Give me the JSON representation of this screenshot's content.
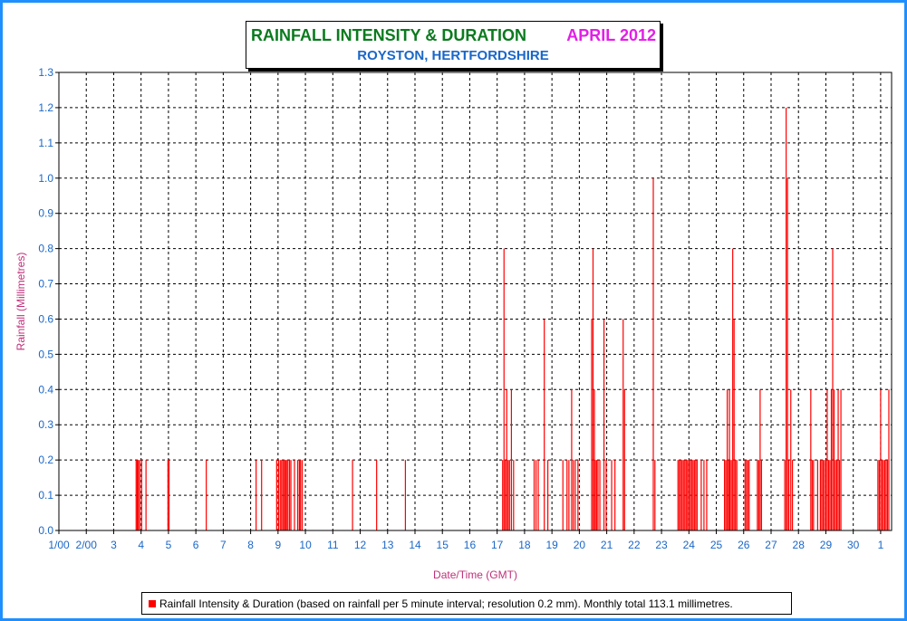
{
  "chart_data": {
    "type": "bar",
    "title": "RAINFALL INTENSITY & DURATION",
    "title_month": "APRIL 2012",
    "subtitle": "ROYSTON, HERTFORDSHIRE",
    "xlabel": "Date/Time (GMT)",
    "ylabel": "Rainfall (Millimetres)",
    "ylim": [
      0,
      1.3
    ],
    "yticks": [
      "0.0",
      "0.1",
      "0.2",
      "0.3",
      "0.4",
      "0.5",
      "0.6",
      "0.7",
      "0.8",
      "0.9",
      "1.0",
      "1.1",
      "1.2",
      "1.3"
    ],
    "xticks": [
      "1/00",
      "2/00",
      "3",
      "4",
      "5",
      "6",
      "7",
      "8",
      "9",
      "10",
      "11",
      "12",
      "13",
      "14",
      "15",
      "16",
      "17",
      "18",
      "19",
      "20",
      "21",
      "22",
      "23",
      "24",
      "25",
      "26",
      "27",
      "28",
      "29",
      "30",
      "1"
    ],
    "grid": true,
    "bar_color": "#ff0000",
    "legend": "Rainfall Intensity & Duration (based on rainfall per 5 minute interval; resolution 0.2 mm). Monthly total 113.1 millimetres.",
    "legend_position": "bottom",
    "x_unit": "day of April 2012 (decimal)",
    "series": [
      {
        "values": [
          [
            3.82,
            0.2
          ],
          [
            3.86,
            0.2
          ],
          [
            3.9,
            0.2
          ],
          [
            3.95,
            0.2
          ],
          [
            4.02,
            0.2
          ],
          [
            4.18,
            0.2
          ],
          [
            4.98,
            0.2
          ],
          [
            5.02,
            0.2
          ],
          [
            6.38,
            0.2
          ],
          [
            8.2,
            0.2
          ],
          [
            8.4,
            0.2
          ],
          [
            8.95,
            0.2
          ],
          [
            9.02,
            0.2
          ],
          [
            9.08,
            0.2
          ],
          [
            9.13,
            0.2
          ],
          [
            9.18,
            0.2
          ],
          [
            9.23,
            0.2
          ],
          [
            9.27,
            0.2
          ],
          [
            9.31,
            0.2
          ],
          [
            9.36,
            0.2
          ],
          [
            9.42,
            0.2
          ],
          [
            9.47,
            0.2
          ],
          [
            9.6,
            0.2
          ],
          [
            9.72,
            0.2
          ],
          [
            9.78,
            0.2
          ],
          [
            9.82,
            0.2
          ],
          [
            9.88,
            0.2
          ],
          [
            11.72,
            0.2
          ],
          [
            12.6,
            0.2
          ],
          [
            13.65,
            0.2
          ],
          [
            17.2,
            0.2
          ],
          [
            17.25,
            0.8
          ],
          [
            17.3,
            0.2
          ],
          [
            17.35,
            0.4
          ],
          [
            17.4,
            0.2
          ],
          [
            17.45,
            0.2
          ],
          [
            17.52,
            0.4
          ],
          [
            17.6,
            0.2
          ],
          [
            18.35,
            0.2
          ],
          [
            18.42,
            0.2
          ],
          [
            18.5,
            0.2
          ],
          [
            18.72,
            0.6
          ],
          [
            18.85,
            0.2
          ],
          [
            19.4,
            0.2
          ],
          [
            19.55,
            0.2
          ],
          [
            19.62,
            0.2
          ],
          [
            19.72,
            0.4
          ],
          [
            19.78,
            0.2
          ],
          [
            19.85,
            0.2
          ],
          [
            19.95,
            0.2
          ],
          [
            20.45,
            0.6
          ],
          [
            20.5,
            0.8
          ],
          [
            20.55,
            0.4
          ],
          [
            20.58,
            0.2
          ],
          [
            20.63,
            0.2
          ],
          [
            20.68,
            0.2
          ],
          [
            20.75,
            0.2
          ],
          [
            20.9,
            0.6
          ],
          [
            20.98,
            0.2
          ],
          [
            21.18,
            0.2
          ],
          [
            21.3,
            0.2
          ],
          [
            21.6,
            0.6
          ],
          [
            21.65,
            0.4
          ],
          [
            22.7,
            1.0
          ],
          [
            22.76,
            0.2
          ],
          [
            23.6,
            0.2
          ],
          [
            23.65,
            0.2
          ],
          [
            23.7,
            0.2
          ],
          [
            23.75,
            0.2
          ],
          [
            23.8,
            0.2
          ],
          [
            23.85,
            0.2
          ],
          [
            23.9,
            0.2
          ],
          [
            23.95,
            0.2
          ],
          [
            24.0,
            0.2
          ],
          [
            24.05,
            0.2
          ],
          [
            24.1,
            0.2
          ],
          [
            24.15,
            0.2
          ],
          [
            24.2,
            0.2
          ],
          [
            24.25,
            0.2
          ],
          [
            24.3,
            0.2
          ],
          [
            24.45,
            0.2
          ],
          [
            24.55,
            0.2
          ],
          [
            24.65,
            0.2
          ],
          [
            25.3,
            0.2
          ],
          [
            25.35,
            0.2
          ],
          [
            25.4,
            0.4
          ],
          [
            25.45,
            0.2
          ],
          [
            25.48,
            0.4
          ],
          [
            25.5,
            0.2
          ],
          [
            25.55,
            0.2
          ],
          [
            25.6,
            0.8
          ],
          [
            25.65,
            0.6
          ],
          [
            25.7,
            0.2
          ],
          [
            25.75,
            0.2
          ],
          [
            26.05,
            0.2
          ],
          [
            26.1,
            0.2
          ],
          [
            26.15,
            0.2
          ],
          [
            26.2,
            0.2
          ],
          [
            26.5,
            0.2
          ],
          [
            26.55,
            0.2
          ],
          [
            26.6,
            0.4
          ],
          [
            26.65,
            0.2
          ],
          [
            27.5,
            0.2
          ],
          [
            27.55,
            1.2
          ],
          [
            27.6,
            1.0
          ],
          [
            27.65,
            0.2
          ],
          [
            27.72,
            0.4
          ],
          [
            27.78,
            0.2
          ],
          [
            28.45,
            0.4
          ],
          [
            28.5,
            0.2
          ],
          [
            28.55,
            0.2
          ],
          [
            28.7,
            0.2
          ],
          [
            28.8,
            0.2
          ],
          [
            28.85,
            0.2
          ],
          [
            28.9,
            0.2
          ],
          [
            28.95,
            0.2
          ],
          [
            29.0,
            0.2
          ],
          [
            29.05,
            0.4
          ],
          [
            29.1,
            0.2
          ],
          [
            29.15,
            0.2
          ],
          [
            29.2,
            0.4
          ],
          [
            29.25,
            0.8
          ],
          [
            29.3,
            0.4
          ],
          [
            29.35,
            0.2
          ],
          [
            29.4,
            0.2
          ],
          [
            29.45,
            0.4
          ],
          [
            29.5,
            0.2
          ],
          [
            29.55,
            0.4
          ],
          [
            30.9,
            0.2
          ],
          [
            30.95,
            0.2
          ],
          [
            31.0,
            0.4
          ],
          [
            31.05,
            0.2
          ],
          [
            31.1,
            0.2
          ],
          [
            31.15,
            0.2
          ],
          [
            31.2,
            0.2
          ],
          [
            31.25,
            0.2
          ],
          [
            31.3,
            0.4
          ]
        ]
      }
    ]
  }
}
